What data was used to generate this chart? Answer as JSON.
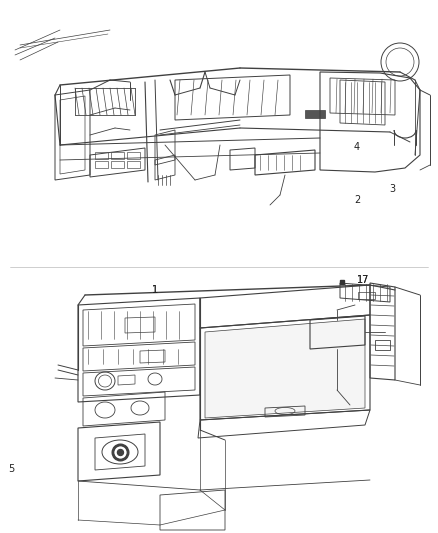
{
  "background_color": "#ffffff",
  "line_color": "#404040",
  "text_color": "#222222",
  "fig_width": 4.38,
  "fig_height": 5.33,
  "dpi": 100,
  "top_panel": {
    "y_min": 0.52,
    "y_max": 1.0
  },
  "bottom_panel": {
    "y_min": 0.0,
    "y_max": 0.5
  },
  "label_1": [
    0.355,
    0.545
  ],
  "label_17": [
    0.83,
    0.525
  ],
  "label_2": [
    0.815,
    0.375
  ],
  "label_3": [
    0.895,
    0.355
  ],
  "label_4": [
    0.815,
    0.275
  ],
  "label_5": [
    0.025,
    0.88
  ]
}
